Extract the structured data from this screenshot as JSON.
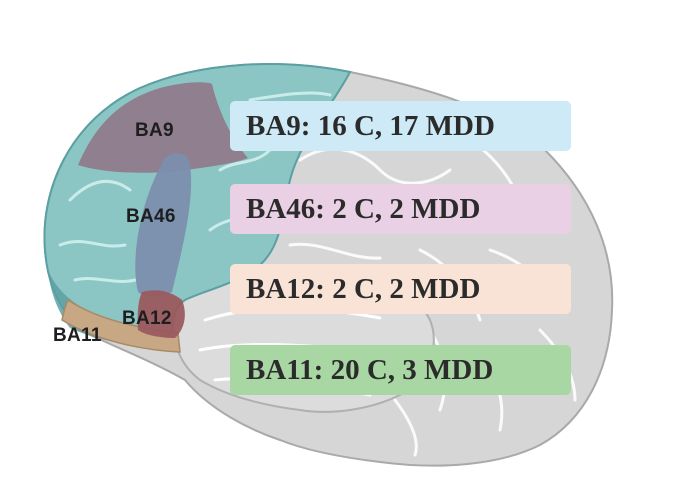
{
  "regions": {
    "ba9": "BA9",
    "ba46": "BA46",
    "ba12": "BA12",
    "ba11": "BA11"
  },
  "counts": [
    {
      "text": "BA9:  16 C, 17 MDD",
      "color": "#cdeaf6"
    },
    {
      "text": "BA46: 2 C, 2 MDD",
      "color": "#ead0e4"
    },
    {
      "text": "BA12: 2 C, 2 MDD",
      "color": "#f8e3d6"
    },
    {
      "text": "BA11: 20 C, 3 MDD",
      "color": "#a9d7a4"
    }
  ],
  "colors": {
    "cortex_gray": "#d6d6d6",
    "cortex_gray_dark": "#a9a9a9",
    "frontal_teal": "#8cc6c4",
    "frontal_teal_dark": "#5aa0a2",
    "ba9_region": "#8f7b8c",
    "ba46_region": "#7b8fae",
    "ba12_region": "#9a5a5e",
    "ba11_region": "#c8a784"
  }
}
